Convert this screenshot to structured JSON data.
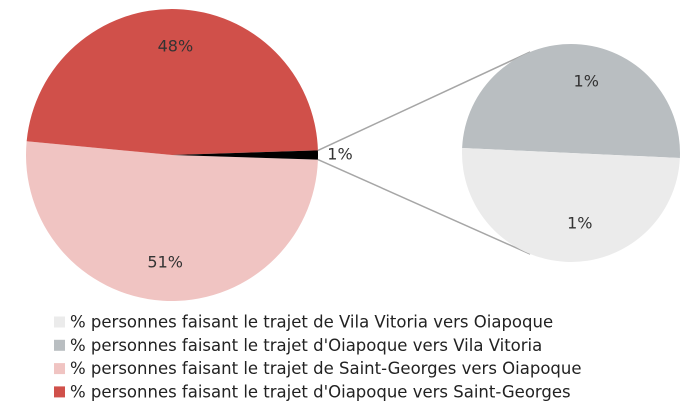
{
  "chart_data": {
    "type": "pie",
    "categories": [
      "% personnes faisant le trajet de Vila Vitoria vers Oiapoque",
      "% personnes faisant le trajet d'Oiapoque vers Vila Vitoria",
      "% personnes faisant le trajet de Saint-Georges vers Oiapoque",
      "% personnes faisant le trajet d'Oiapoque vers Saint-Georges"
    ],
    "values": [
      1,
      1,
      51,
      48
    ],
    "value_labels": [
      "1%",
      "1%",
      "51%",
      "48%"
    ],
    "colors": [
      "#ebebeb",
      "#b9bec1",
      "#f0c4c2",
      "#d0504a"
    ],
    "secondary_count": 2,
    "other_value": 1,
    "other_value_label": "1%",
    "other_color": "#000000"
  }
}
